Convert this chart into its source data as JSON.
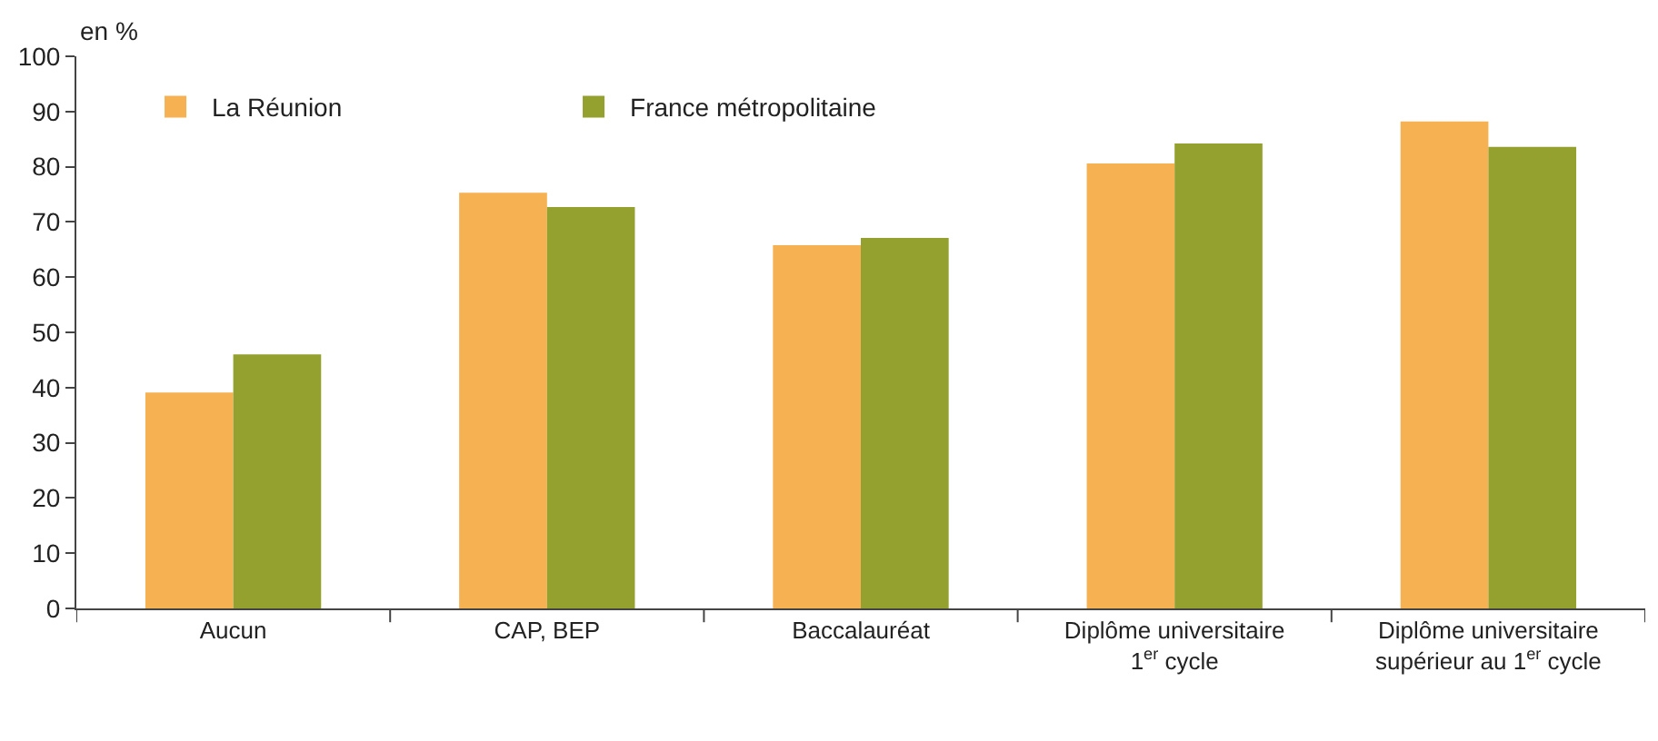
{
  "chart_data": {
    "type": "bar",
    "ylabel": "en %",
    "categories": [
      "Aucun",
      "CAP, BEP",
      "Baccalauréat",
      "Diplôme universitaire\n1$^{er}$ cycle",
      "Diplôme universitaire\nsupérieur au 1$^{er}$ cycle"
    ],
    "series": [
      {
        "name": "La Réunion",
        "color": "#f5b152",
        "values": [
          39.1,
          75.3,
          65.8,
          80.6,
          88.2
        ]
      },
      {
        "name": "France métropolitaine",
        "color": "#95a12f",
        "values": [
          46.0,
          72.7,
          67.1,
          84.2,
          83.6
        ]
      }
    ],
    "ylim": [
      0,
      100
    ],
    "yticks": [
      0,
      10,
      20,
      30,
      40,
      50,
      60,
      70,
      80,
      90,
      100
    ],
    "legend": "top left"
  }
}
